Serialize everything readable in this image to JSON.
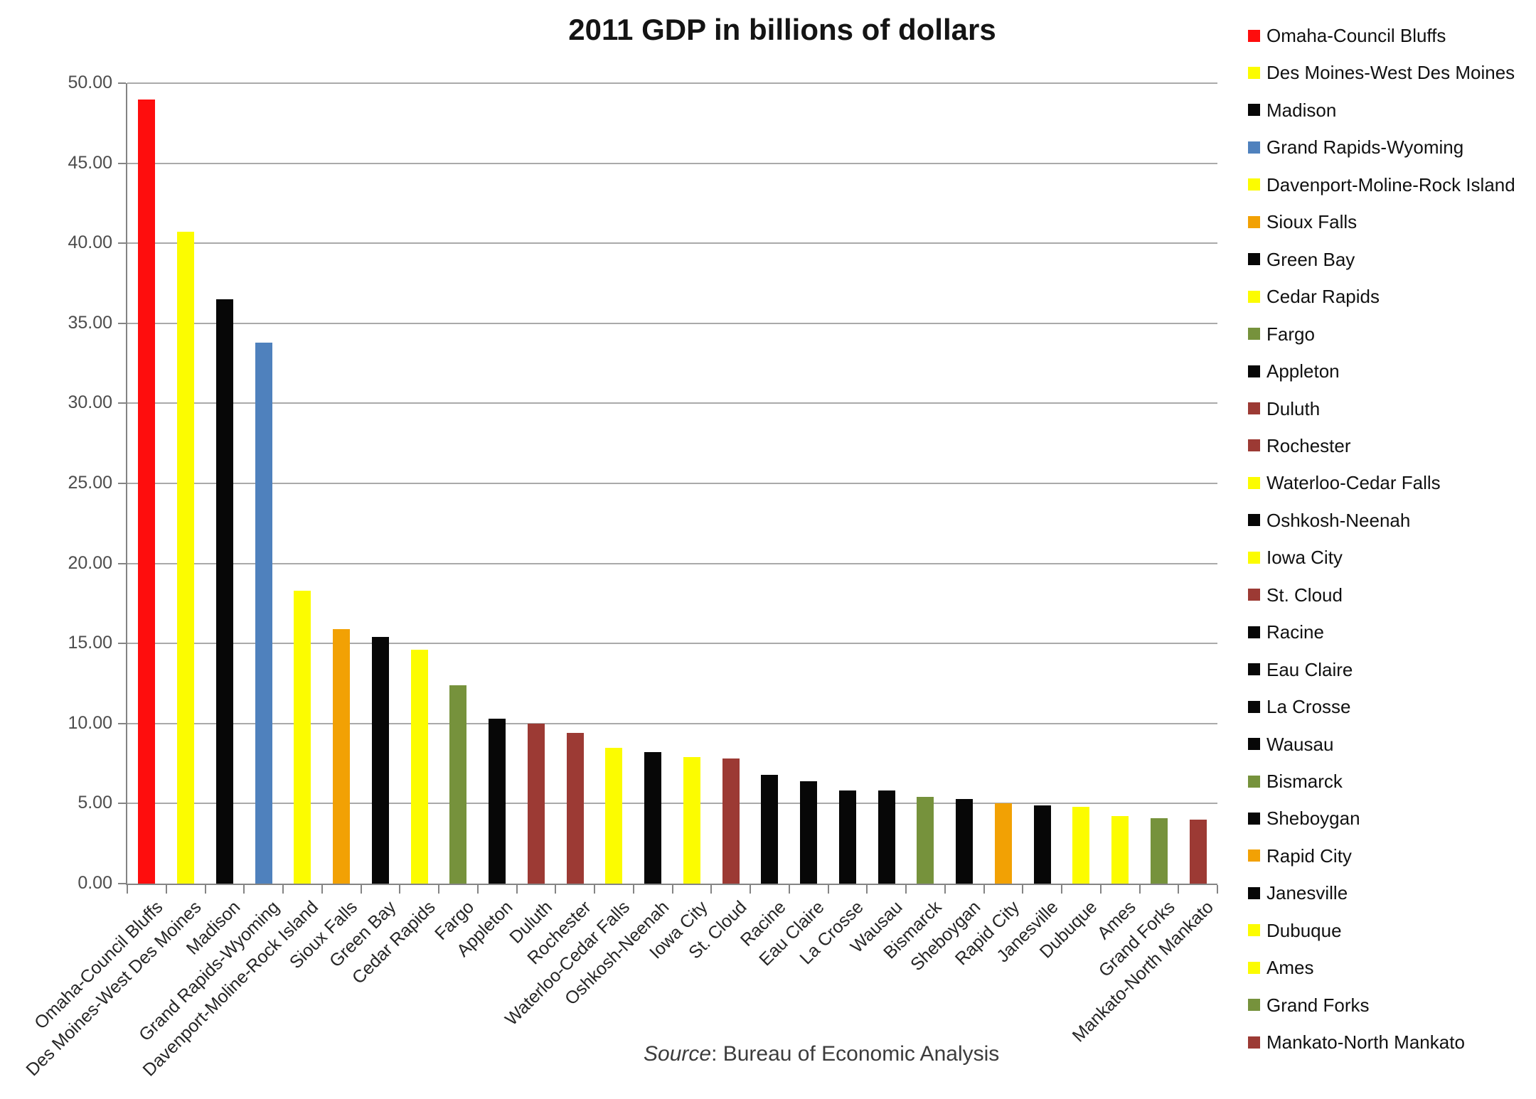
{
  "chart_data": {
    "type": "bar",
    "title": "2011 GDP in billions of dollars",
    "xlabel": "",
    "ylabel": "",
    "ylim": [
      0,
      50
    ],
    "y_tick_step": 5,
    "y_tick_labels": [
      "0.00",
      "5.00",
      "10.00",
      "15.00",
      "20.00",
      "25.00",
      "30.00",
      "35.00",
      "40.00",
      "45.00",
      "50.00"
    ],
    "grid": true,
    "legend_position": "right",
    "categories": [
      "Omaha-Council Bluffs",
      "Des Moines-West Des Moines",
      "Madison",
      "Grand Rapids-Wyoming",
      "Davenport-Moline-Rock Island",
      "Sioux Falls",
      "Green Bay",
      "Cedar Rapids",
      "Fargo",
      "Appleton",
      "Duluth",
      "Rochester",
      "Waterloo-Cedar Falls",
      "Oshkosh-Neenah",
      "Iowa City",
      "St. Cloud",
      "Racine",
      "Eau Claire",
      "La Crosse",
      "Wausau",
      "Bismarck",
      "Sheboygan",
      "Rapid City",
      "Janesville",
      "Dubuque",
      "Ames",
      "Grand Forks",
      "Mankato-North Mankato"
    ],
    "values": [
      49.0,
      40.7,
      36.5,
      33.8,
      18.3,
      15.9,
      15.4,
      14.6,
      12.4,
      10.3,
      10.0,
      9.4,
      8.5,
      8.2,
      7.9,
      7.8,
      6.8,
      6.4,
      5.8,
      5.8,
      5.4,
      5.3,
      5.0,
      4.9,
      4.8,
      4.2,
      4.1,
      4.0
    ],
    "bar_color_keys": [
      "red",
      "yellow",
      "black",
      "blue",
      "yellow",
      "orange",
      "black",
      "yellow",
      "olive",
      "black",
      "darkred",
      "darkred",
      "yellow",
      "black",
      "yellow",
      "darkred",
      "black",
      "black",
      "black",
      "black",
      "olive",
      "black",
      "orange",
      "black",
      "yellow",
      "yellow",
      "olive",
      "darkred"
    ],
    "palette": {
      "red": "#fe0d0d",
      "yellow": "#fcfc00",
      "black": "#070707",
      "blue": "#4f81bd",
      "orange": "#f2a104",
      "olive": "#76923c",
      "darkred": "#9c3a34"
    },
    "axis_color": "#848484",
    "gridline_color": "#aaaaaa"
  },
  "source": {
    "prefix": "Source",
    "rest": ": Bureau of Economic Analysis"
  }
}
